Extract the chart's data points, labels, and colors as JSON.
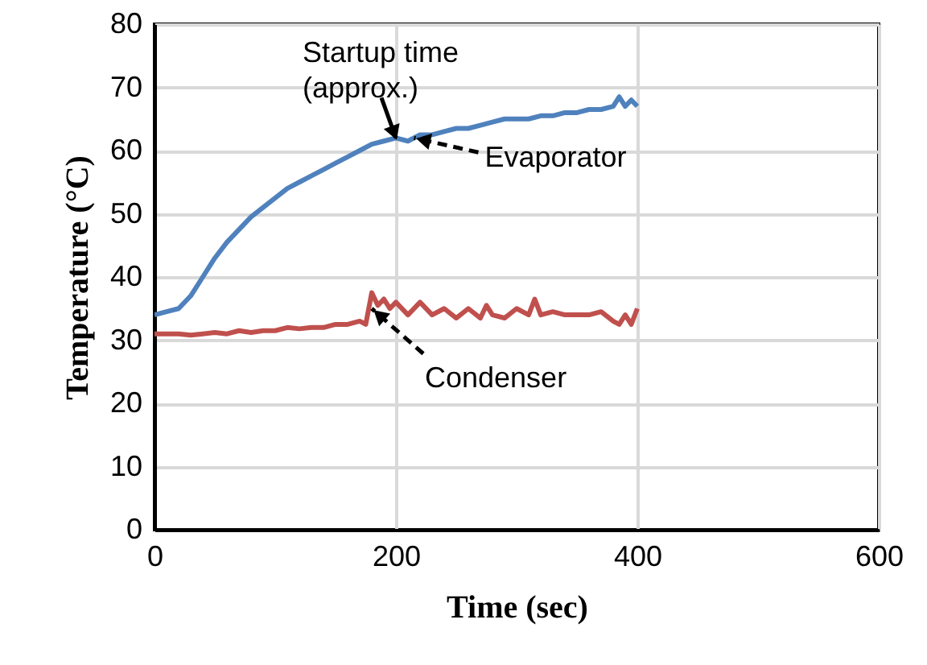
{
  "chart_data": {
    "type": "line",
    "xlabel": "Time (sec)",
    "ylabel": "Temperature (°C)",
    "xlim": [
      0,
      600
    ],
    "xticks": [
      0,
      200,
      400,
      600
    ],
    "ylim": [
      0,
      80
    ],
    "yticks": [
      0,
      10,
      20,
      30,
      40,
      50,
      60,
      70,
      80
    ],
    "grid": true,
    "series": [
      {
        "color": "#4f81bd",
        "x": [
          0,
          10,
          20,
          30,
          40,
          50,
          60,
          70,
          80,
          90,
          100,
          110,
          120,
          130,
          140,
          150,
          160,
          170,
          180,
          190,
          200,
          210,
          220,
          230,
          240,
          250,
          260,
          270,
          280,
          290,
          300,
          310,
          320,
          330,
          340,
          350,
          360,
          370,
          380,
          385,
          390,
          395,
          400
        ],
        "values": [
          34,
          34.5,
          35,
          37,
          40,
          43,
          45.5,
          47.5,
          49.5,
          51,
          52.5,
          54,
          55,
          56,
          57,
          58,
          59,
          60,
          61,
          61.5,
          62,
          61.5,
          62.5,
          62.5,
          63,
          63.5,
          63.5,
          64,
          64.5,
          65,
          65,
          65,
          65.5,
          65.5,
          66,
          66,
          66.5,
          66.5,
          67,
          68.5,
          67,
          68,
          67
        ]
      },
      {
        "color": "#c0504d",
        "x": [
          0,
          10,
          20,
          30,
          40,
          50,
          60,
          70,
          80,
          90,
          100,
          110,
          120,
          130,
          140,
          150,
          160,
          170,
          175,
          180,
          185,
          190,
          195,
          200,
          210,
          220,
          230,
          240,
          250,
          260,
          270,
          275,
          280,
          290,
          300,
          310,
          315,
          320,
          330,
          340,
          350,
          360,
          370,
          380,
          385,
          390,
          395,
          400
        ],
        "values": [
          31,
          31,
          31,
          30.8,
          31,
          31.2,
          31,
          31.5,
          31.2,
          31.5,
          31.5,
          32,
          31.8,
          32,
          32,
          32.5,
          32.5,
          33,
          32.5,
          37.5,
          35.5,
          36.5,
          35,
          36,
          34,
          36,
          34,
          35,
          33.5,
          35,
          33.5,
          35.5,
          34,
          33.5,
          35,
          34,
          36.5,
          34,
          34.5,
          34,
          34,
          34,
          34.5,
          33,
          32.5,
          34,
          32.5,
          35
        ]
      }
    ],
    "annotations": [
      {
        "text": "Startup time\n(approx.)",
        "x": 200,
        "y": 62
      },
      {
        "text": "Evaporator",
        "x": 215,
        "y": 62
      },
      {
        "text": "Condenser",
        "x": 180,
        "y": 35
      }
    ]
  }
}
